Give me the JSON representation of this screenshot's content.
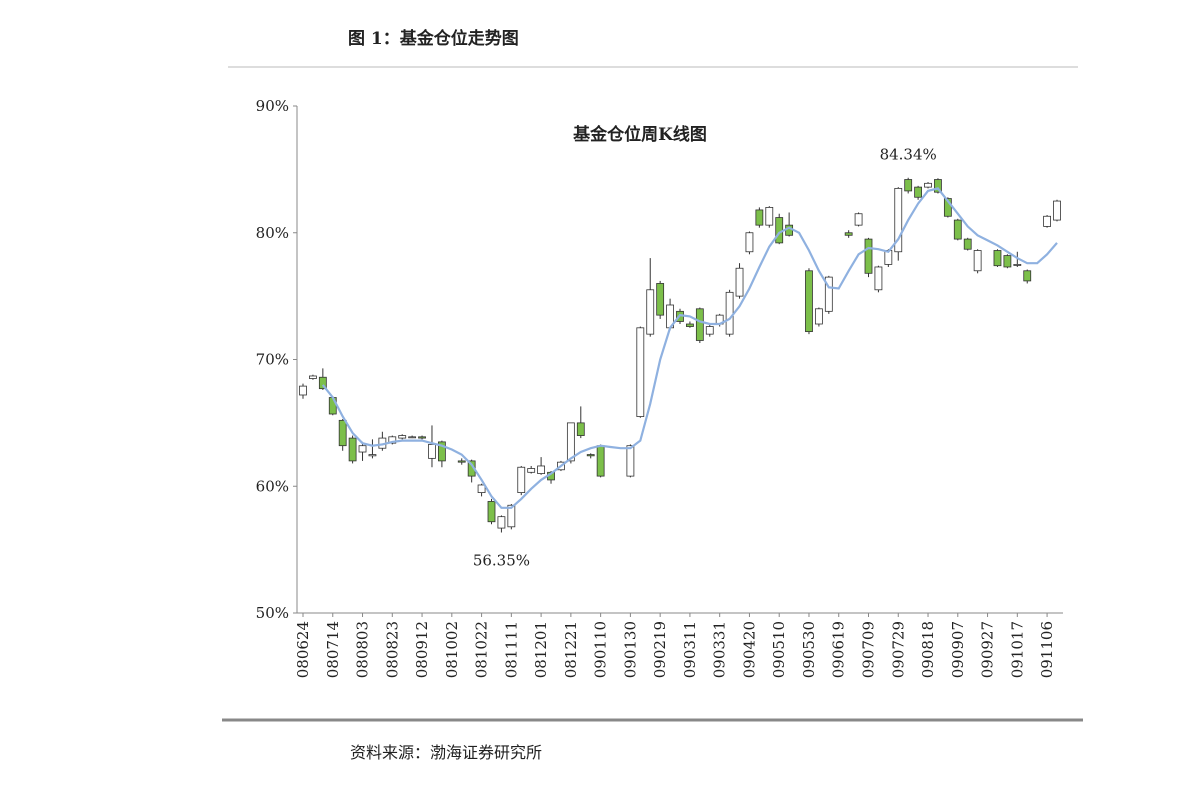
{
  "header": {
    "title": "图 1：基金仓位走势图"
  },
  "chart_data": {
    "type": "candlestick",
    "title": "基金仓位周K线图",
    "categories": [
      "080624",
      null,
      null,
      "080714",
      null,
      null,
      "080803",
      null,
      null,
      "080823",
      null,
      null,
      "080912",
      null,
      null,
      "081002",
      null,
      null,
      "081022",
      null,
      null,
      "081111",
      null,
      null,
      "081201",
      null,
      null,
      "081221",
      null,
      null,
      "090110",
      null,
      null,
      "090130",
      null,
      null,
      "090219",
      null,
      null,
      "090311",
      null,
      null,
      "090331",
      null,
      null,
      "090420",
      null,
      null,
      "090510",
      null,
      null,
      "090530",
      null,
      null,
      "090619",
      null,
      null,
      "090709",
      null,
      null,
      "090729",
      null,
      null,
      "090818",
      null,
      null,
      "090907",
      null,
      null,
      "090927",
      null,
      null,
      "091017",
      null,
      null,
      "091106",
      null
    ],
    "open": [
      67.2,
      68.5,
      68.6,
      67.0,
      65.2,
      63.8,
      62.7,
      62.4,
      63.0,
      63.4,
      63.8,
      63.9,
      63.9,
      62.2,
      63.5,
      null,
      62.0,
      62.0,
      59.5,
      58.8,
      56.7,
      56.8,
      59.5,
      61.1,
      61.0,
      61.1,
      61.3,
      62.0,
      65.0,
      62.5,
      63.2,
      null,
      null,
      60.8,
      65.5,
      72.0,
      76.0,
      72.5,
      73.8,
      72.8,
      74.0,
      72.0,
      72.8,
      72.0,
      75.0,
      78.5,
      81.8,
      80.6,
      81.2,
      80.6,
      null,
      77.0,
      72.8,
      73.8,
      null,
      80.0,
      80.6,
      79.5,
      75.5,
      77.5,
      78.5,
      84.2,
      83.6,
      83.6,
      84.2,
      82.7,
      81.0,
      79.5,
      77.0,
      null,
      78.6,
      78.2,
      77.5,
      77.0,
      null,
      80.5,
      81.0
    ],
    "high": [
      68.1,
      68.8,
      69.3,
      67.1,
      65.3,
      64.0,
      63.5,
      63.7,
      64.3,
      64.0,
      64.1,
      64.0,
      64.0,
      64.8,
      63.6,
      null,
      62.2,
      62.1,
      60.2,
      59.0,
      57.7,
      58.6,
      61.6,
      61.6,
      62.3,
      61.2,
      62.0,
      65.0,
      66.3,
      62.6,
      63.3,
      null,
      null,
      63.3,
      72.6,
      78.0,
      76.2,
      74.8,
      74.0,
      73.0,
      74.1,
      72.8,
      73.6,
      75.5,
      77.6,
      80.1,
      82.0,
      82.1,
      81.5,
      81.6,
      null,
      77.2,
      74.1,
      76.6,
      null,
      80.2,
      81.6,
      79.6,
      77.4,
      78.7,
      83.6,
      84.34,
      83.7,
      84.0,
      84.3,
      82.8,
      81.1,
      79.6,
      78.7,
      null,
      78.7,
      78.3,
      78.5,
      77.1,
      null,
      81.4,
      82.6
    ],
    "low": [
      66.9,
      68.4,
      67.6,
      65.6,
      62.8,
      61.8,
      62.0,
      62.2,
      62.8,
      63.3,
      63.7,
      63.8,
      63.7,
      61.5,
      61.5,
      null,
      61.7,
      60.3,
      59.2,
      57.0,
      56.35,
      56.6,
      59.3,
      61.0,
      60.9,
      60.2,
      61.2,
      61.8,
      63.8,
      62.2,
      60.7,
      null,
      null,
      60.7,
      65.4,
      71.8,
      73.2,
      72.3,
      72.8,
      72.5,
      71.3,
      71.8,
      72.6,
      71.8,
      74.8,
      78.3,
      80.4,
      80.4,
      79.1,
      79.7,
      null,
      72.0,
      72.6,
      73.6,
      null,
      79.6,
      80.5,
      76.5,
      75.3,
      77.3,
      77.8,
      83.1,
      82.6,
      83.5,
      83.1,
      81.2,
      79.4,
      78.6,
      76.8,
      null,
      77.3,
      77.2,
      77.3,
      76.0,
      null,
      80.4,
      80.9
    ],
    "close": [
      67.9,
      68.7,
      67.7,
      65.7,
      63.2,
      62.0,
      63.2,
      62.5,
      63.8,
      63.9,
      64.0,
      63.9,
      63.8,
      63.3,
      62.0,
      null,
      61.9,
      60.8,
      60.1,
      57.2,
      57.6,
      58.5,
      61.5,
      61.4,
      61.6,
      60.5,
      61.9,
      65.0,
      64.0,
      62.4,
      60.8,
      null,
      null,
      63.2,
      72.5,
      75.5,
      73.5,
      74.3,
      73.0,
      72.6,
      71.5,
      72.6,
      73.5,
      75.3,
      77.2,
      80.0,
      80.6,
      82.0,
      79.2,
      79.8,
      null,
      72.2,
      74.0,
      76.5,
      null,
      79.8,
      81.5,
      76.8,
      77.3,
      78.6,
      83.5,
      83.3,
      82.8,
      83.9,
      83.2,
      81.3,
      79.5,
      78.7,
      78.6,
      null,
      77.4,
      77.3,
      77.5,
      76.2,
      null,
      81.3,
      82.5
    ],
    "ma_values": [
      null,
      null,
      68.0,
      67.0,
      65.5,
      64.2,
      63.4,
      63.2,
      63.3,
      63.5,
      63.6,
      63.6,
      63.6,
      63.4,
      63.2,
      62.9,
      62.5,
      61.7,
      60.5,
      59.2,
      58.3,
      58.3,
      59.0,
      59.8,
      60.5,
      61.0,
      61.6,
      62.2,
      62.7,
      63.0,
      63.2,
      63.1,
      63.0,
      63.0,
      63.6,
      66.5,
      70.0,
      72.5,
      73.5,
      73.4,
      73.0,
      72.8,
      72.8,
      73.2,
      74.2,
      75.6,
      77.3,
      78.9,
      80.0,
      80.4,
      80.0,
      78.6,
      77.0,
      75.7,
      75.6,
      77.0,
      78.3,
      78.8,
      78.7,
      78.5,
      79.5,
      81.0,
      82.3,
      83.3,
      83.5,
      82.5,
      81.5,
      80.5,
      79.8,
      79.4,
      79.0,
      78.5,
      78.0,
      77.6,
      77.6,
      78.3,
      79.2
    ],
    "ma_color": "#8fb1e0",
    "up_color": "#ffffff",
    "down_color": "#7cbf4a",
    "high_label": "84.34%",
    "low_label": "56.35%",
    "ylim": [
      50,
      90
    ],
    "yticks": [
      {
        "value": 50,
        "label": "50%"
      },
      {
        "value": 60,
        "label": "60%"
      },
      {
        "value": 70,
        "label": "70%"
      },
      {
        "value": 80,
        "label": "80%"
      },
      {
        "value": 90,
        "label": "90%"
      }
    ],
    "grid": false
  },
  "footer": {
    "source": "资料来源：渤海证券研究所"
  }
}
